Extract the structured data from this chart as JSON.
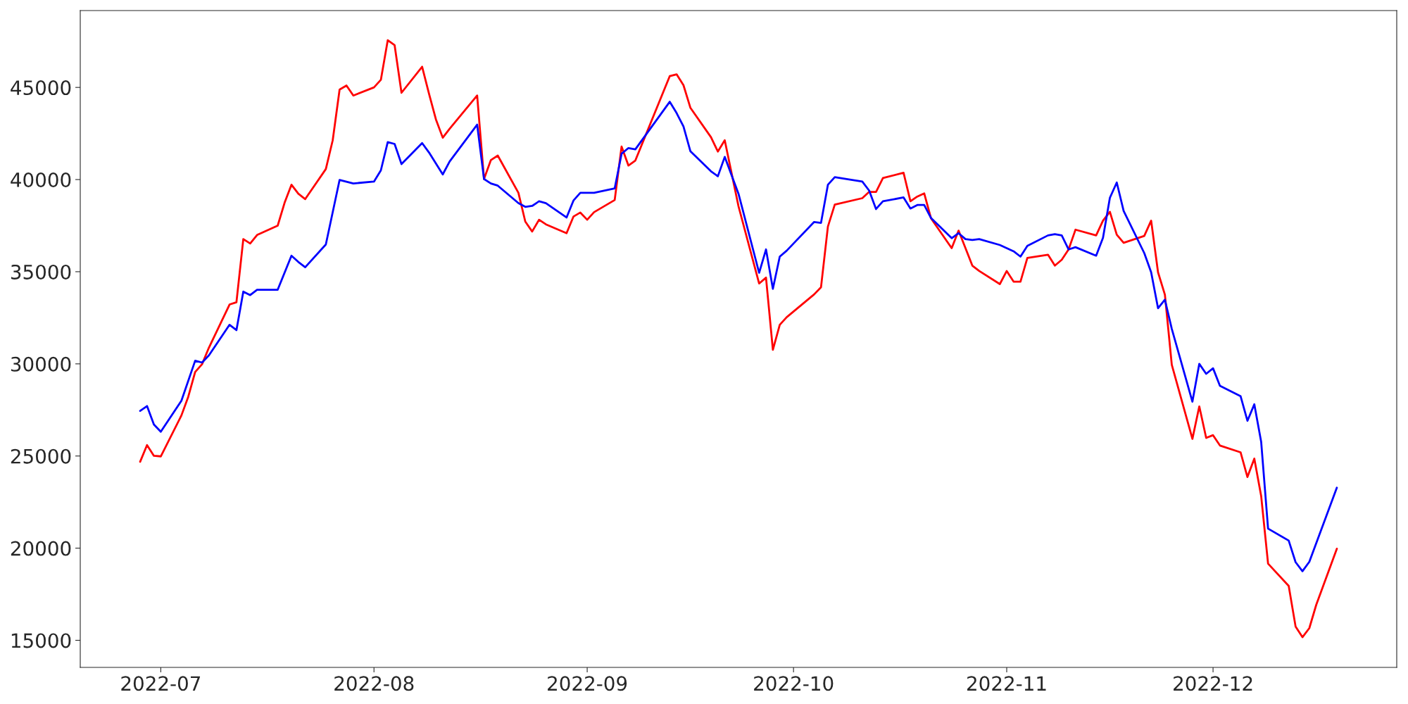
{
  "chart_data": {
    "type": "line",
    "xlim": [
      "2022-06-19T07:00",
      "2022-12-27T17:00"
    ],
    "xticks": [
      {
        "value": "2022-07-01",
        "label": "2022-07"
      },
      {
        "value": "2022-08-01",
        "label": "2022-08"
      },
      {
        "value": "2022-09-01",
        "label": "2022-09"
      },
      {
        "value": "2022-10-01",
        "label": "2022-10"
      },
      {
        "value": "2022-11-01",
        "label": "2022-11"
      },
      {
        "value": "2022-12-01",
        "label": "2022-12"
      }
    ],
    "ylim": [
      13530,
      49170
    ],
    "yticks": [
      15000,
      20000,
      25000,
      30000,
      35000,
      40000,
      45000
    ],
    "grid": false,
    "legend": false,
    "marker": "none",
    "line_style": "solid",
    "series": [
      {
        "color": "#ff0000",
        "x": [
          "2022-06-28",
          "2022-06-29",
          "2022-06-30",
          "2022-07-01",
          "2022-07-04",
          "2022-07-05",
          "2022-07-06",
          "2022-07-07",
          "2022-07-08",
          "2022-07-11",
          "2022-07-12",
          "2022-07-13",
          "2022-07-14",
          "2022-07-15",
          "2022-07-18",
          "2022-07-19",
          "2022-07-20",
          "2022-07-21",
          "2022-07-22",
          "2022-07-25",
          "2022-07-26",
          "2022-07-27",
          "2022-07-28",
          "2022-07-29",
          "2022-08-01",
          "2022-08-02",
          "2022-08-03",
          "2022-08-04",
          "2022-08-05",
          "2022-08-08",
          "2022-08-09",
          "2022-08-10",
          "2022-08-11",
          "2022-08-12",
          "2022-08-16",
          "2022-08-17",
          "2022-08-18",
          "2022-08-19",
          "2022-08-22",
          "2022-08-23",
          "2022-08-24",
          "2022-08-25",
          "2022-08-26",
          "2022-08-29",
          "2022-08-30",
          "2022-08-31",
          "2022-09-01",
          "2022-09-02",
          "2022-09-05",
          "2022-09-06",
          "2022-09-07",
          "2022-09-08",
          "2022-09-13",
          "2022-09-14",
          "2022-09-15",
          "2022-09-16",
          "2022-09-19",
          "2022-09-20",
          "2022-09-21",
          "2022-09-23",
          "2022-09-26",
          "2022-09-27",
          "2022-09-28",
          "2022-09-29",
          "2022-09-30",
          "2022-10-04",
          "2022-10-05",
          "2022-10-06",
          "2022-10-07",
          "2022-10-11",
          "2022-10-12",
          "2022-10-13",
          "2022-10-14",
          "2022-10-17",
          "2022-10-18",
          "2022-10-19",
          "2022-10-20",
          "2022-10-21",
          "2022-10-24",
          "2022-10-25",
          "2022-10-27",
          "2022-10-28",
          "2022-10-31",
          "2022-11-01",
          "2022-11-02",
          "2022-11-03",
          "2022-11-04",
          "2022-11-07",
          "2022-11-08",
          "2022-11-09",
          "2022-11-10",
          "2022-11-11",
          "2022-11-14",
          "2022-11-15",
          "2022-11-16",
          "2022-11-17",
          "2022-11-18",
          "2022-11-21",
          "2022-11-22",
          "2022-11-23",
          "2022-11-24",
          "2022-11-25",
          "2022-11-28",
          "2022-11-29",
          "2022-11-30",
          "2022-12-01",
          "2022-12-02",
          "2022-12-05",
          "2022-12-06",
          "2022-12-07",
          "2022-12-08",
          "2022-12-09",
          "2022-12-12",
          "2022-12-13",
          "2022-12-14",
          "2022-12-15",
          "2022-12-16",
          "2022-12-19"
        ],
        "values": [
          24690,
          25590,
          25010,
          24980,
          27200,
          28220,
          29560,
          29980,
          30880,
          33220,
          33340,
          36770,
          36530,
          36990,
          37500,
          38740,
          39720,
          39230,
          38940,
          40570,
          42130,
          44880,
          45100,
          44560,
          45000,
          45410,
          47560,
          47290,
          44710,
          46120,
          44660,
          43270,
          42270,
          42760,
          44560,
          40030,
          41060,
          41300,
          39280,
          37720,
          37180,
          37820,
          37570,
          37090,
          37990,
          38210,
          37820,
          38230,
          38890,
          41790,
          40760,
          41030,
          45610,
          45710,
          45120,
          43900,
          42300,
          41520,
          42130,
          38550,
          34360,
          34680,
          30760,
          32120,
          32530,
          33770,
          34160,
          37450,
          38640,
          38990,
          39330,
          39330,
          40080,
          40370,
          38820,
          39080,
          39250,
          37890,
          36280,
          37230,
          35330,
          35040,
          34330,
          35040,
          34460,
          34460,
          35750,
          35920,
          35330,
          35650,
          36210,
          37280,
          36970,
          37770,
          38250,
          37010,
          36570,
          36940,
          37770,
          34970,
          33750,
          29950,
          25930,
          27690,
          25980,
          26130,
          25570,
          25200,
          23860,
          24860,
          22820,
          19160,
          17950,
          15750,
          15170,
          15660,
          16920,
          19970
        ]
      },
      {
        "color": "#0000ff",
        "x": [
          "2022-06-28",
          "2022-06-29",
          "2022-06-30",
          "2022-07-01",
          "2022-07-04",
          "2022-07-06",
          "2022-07-07",
          "2022-07-08",
          "2022-07-11",
          "2022-07-12",
          "2022-07-13",
          "2022-07-14",
          "2022-07-15",
          "2022-07-18",
          "2022-07-20",
          "2022-07-21",
          "2022-07-22",
          "2022-07-25",
          "2022-07-27",
          "2022-07-29",
          "2022-08-01",
          "2022-08-02",
          "2022-08-03",
          "2022-08-04",
          "2022-08-05",
          "2022-08-08",
          "2022-08-09",
          "2022-08-11",
          "2022-08-12",
          "2022-08-16",
          "2022-08-17",
          "2022-08-18",
          "2022-08-19",
          "2022-08-22",
          "2022-08-23",
          "2022-08-24",
          "2022-08-25",
          "2022-08-26",
          "2022-08-29",
          "2022-08-30",
          "2022-08-31",
          "2022-09-02",
          "2022-09-05",
          "2022-09-06",
          "2022-09-07",
          "2022-09-08",
          "2022-09-13",
          "2022-09-14",
          "2022-09-15",
          "2022-09-16",
          "2022-09-19",
          "2022-09-20",
          "2022-09-21",
          "2022-09-23",
          "2022-09-26",
          "2022-09-27",
          "2022-09-28",
          "2022-09-29",
          "2022-09-30",
          "2022-10-04",
          "2022-10-05",
          "2022-10-06",
          "2022-10-07",
          "2022-10-11",
          "2022-10-12",
          "2022-10-13",
          "2022-10-14",
          "2022-10-17",
          "2022-10-18",
          "2022-10-19",
          "2022-10-20",
          "2022-10-21",
          "2022-10-24",
          "2022-10-25",
          "2022-10-26",
          "2022-10-27",
          "2022-10-28",
          "2022-10-31",
          "2022-11-01",
          "2022-11-02",
          "2022-11-03",
          "2022-11-04",
          "2022-11-07",
          "2022-11-08",
          "2022-11-09",
          "2022-11-10",
          "2022-11-11",
          "2022-11-14",
          "2022-11-15",
          "2022-11-16",
          "2022-11-17",
          "2022-11-18",
          "2022-11-21",
          "2022-11-22",
          "2022-11-23",
          "2022-11-24",
          "2022-11-25",
          "2022-11-28",
          "2022-11-29",
          "2022-11-30",
          "2022-12-01",
          "2022-12-02",
          "2022-12-05",
          "2022-12-06",
          "2022-12-07",
          "2022-12-08",
          "2022-12-09",
          "2022-12-12",
          "2022-12-13",
          "2022-12-14",
          "2022-12-15",
          "2022-12-19"
        ],
        "values": [
          27450,
          27710,
          26710,
          26320,
          28000,
          30170,
          30070,
          30460,
          32120,
          31830,
          33920,
          33730,
          34020,
          34020,
          35870,
          35530,
          35240,
          36480,
          39980,
          39790,
          39890,
          40500,
          42030,
          41930,
          40840,
          41980,
          41470,
          40280,
          40980,
          42980,
          40030,
          39790,
          39670,
          38720,
          38520,
          38570,
          38820,
          38720,
          37940,
          38860,
          39280,
          39280,
          39520,
          41400,
          41710,
          41640,
          44220,
          43610,
          42880,
          41540,
          40450,
          40180,
          41230,
          39230,
          34940,
          36210,
          34070,
          35820,
          36140,
          37700,
          37650,
          39720,
          40130,
          39890,
          39400,
          38400,
          38820,
          39030,
          38430,
          38620,
          38620,
          37910,
          36820,
          37090,
          36770,
          36720,
          36770,
          36450,
          36280,
          36110,
          35820,
          36400,
          36970,
          37040,
          36970,
          36210,
          36330,
          35870,
          36840,
          39010,
          39840,
          38300,
          36010,
          34970,
          33020,
          33480,
          31900,
          27950,
          30000,
          29460,
          29760,
          28810,
          28250,
          26910,
          27810,
          25760,
          21060,
          20410,
          19240,
          18750,
          19260,
          23280
        ]
      }
    ]
  }
}
